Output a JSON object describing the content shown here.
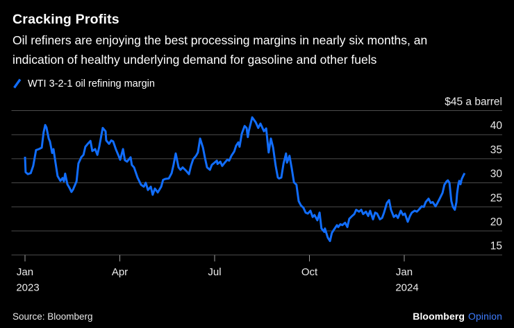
{
  "header": {
    "title": "Cracking Profits",
    "subtitle_lines": [
      "Oil refiners are enjoying the best processing margins in nearly six months, an",
      "indication of healthy underlying demand for gasoline and other fuels"
    ],
    "legend": {
      "label": "WTI 3-2-1 oil refining margin",
      "swatch_icon": "slash-icon",
      "color": "#116DFB"
    }
  },
  "chart_data": {
    "type": "line",
    "title": "Cracking Profits",
    "series_name": "WTI 3-2-1 oil refining margin",
    "y_top_label": "$45 a barrel",
    "ylabel": "$ a barrel",
    "ylim": [
      15,
      45
    ],
    "y_gridlines": [
      45,
      40,
      35,
      30,
      25,
      20,
      15
    ],
    "grid_color": "#4d4d4d",
    "tick_color": "#9e9e9e",
    "axis_text_color": "#ececec",
    "line_color": "#116DFB",
    "x_unit": "months since Jan 2023",
    "x_ticks": [
      {
        "t": 0,
        "label": "Jan",
        "sublabel": "2023"
      },
      {
        "t": 3,
        "label": "Apr",
        "sublabel": ""
      },
      {
        "t": 6,
        "label": "Jul",
        "sublabel": ""
      },
      {
        "t": 9,
        "label": "Oct",
        "sublabel": ""
      },
      {
        "t": 12,
        "label": "Jan",
        "sublabel": "2024"
      }
    ],
    "points": [
      [
        0,
        35.4
      ],
      [
        0.02,
        32.2
      ],
      [
        0.09,
        31.8
      ],
      [
        0.18,
        32
      ],
      [
        0.26,
        33.5
      ],
      [
        0.35,
        36.8
      ],
      [
        0.44,
        37
      ],
      [
        0.53,
        37.3
      ],
      [
        0.59,
        40.5
      ],
      [
        0.64,
        42
      ],
      [
        0.68,
        41.5
      ],
      [
        0.75,
        39.2
      ],
      [
        0.79,
        38.6
      ],
      [
        0.86,
        36.2
      ],
      [
        0.9,
        37
      ],
      [
        0.97,
        34
      ],
      [
        1.03,
        31.4
      ],
      [
        1.12,
        30.4
      ],
      [
        1.19,
        31
      ],
      [
        1.23,
        30.3
      ],
      [
        1.27,
        31.9
      ],
      [
        1.34,
        29.7
      ],
      [
        1.41,
        28.9
      ],
      [
        1.47,
        28.1
      ],
      [
        1.52,
        28.6
      ],
      [
        1.63,
        30.3
      ],
      [
        1.69,
        34
      ],
      [
        1.78,
        35.3
      ],
      [
        1.85,
        35.8
      ],
      [
        1.91,
        37.5
      ],
      [
        2,
        38.2
      ],
      [
        2.07,
        38.7
      ],
      [
        2.13,
        36.6
      ],
      [
        2.22,
        37
      ],
      [
        2.29,
        35.8
      ],
      [
        2.35,
        37.5
      ],
      [
        2.42,
        40
      ],
      [
        2.46,
        41.4
      ],
      [
        2.55,
        40.7
      ],
      [
        2.57,
        38.8
      ],
      [
        2.66,
        38.1
      ],
      [
        2.73,
        38.8
      ],
      [
        2.79,
        38.6
      ],
      [
        2.88,
        36.9
      ],
      [
        2.95,
        35.8
      ],
      [
        3.01,
        34.8
      ],
      [
        3.1,
        37
      ],
      [
        3.16,
        34.7
      ],
      [
        3.23,
        34.4
      ],
      [
        3.34,
        35.3
      ],
      [
        3.38,
        33.7
      ],
      [
        3.45,
        33.2
      ],
      [
        3.56,
        31.1
      ],
      [
        3.67,
        29.6
      ],
      [
        3.76,
        29.2
      ],
      [
        3.82,
        30
      ],
      [
        3.89,
        28.5
      ],
      [
        3.98,
        29.2
      ],
      [
        4.04,
        27.5
      ],
      [
        4.11,
        28.8
      ],
      [
        4.2,
        28
      ],
      [
        4.31,
        29.2
      ],
      [
        4.37,
        30.6
      ],
      [
        4.44,
        30.8
      ],
      [
        4.55,
        30.9
      ],
      [
        4.64,
        32
      ],
      [
        4.7,
        33.7
      ],
      [
        4.77,
        36.1
      ],
      [
        4.86,
        33.2
      ],
      [
        4.92,
        32.7
      ],
      [
        4.99,
        33.2
      ],
      [
        5.1,
        32.5
      ],
      [
        5.19,
        31.8
      ],
      [
        5.25,
        33.5
      ],
      [
        5.32,
        34.9
      ],
      [
        5.41,
        35.6
      ],
      [
        5.47,
        36.3
      ],
      [
        5.54,
        39.2
      ],
      [
        5.63,
        37.3
      ],
      [
        5.69,
        35.3
      ],
      [
        5.76,
        33.2
      ],
      [
        5.85,
        32.7
      ],
      [
        5.91,
        33.7
      ],
      [
        5.98,
        34.1
      ],
      [
        6.07,
        34.6
      ],
      [
        6.09,
        33.9
      ],
      [
        6.18,
        34.4
      ],
      [
        6.24,
        33.5
      ],
      [
        6.31,
        34.1
      ],
      [
        6.4,
        34.8
      ],
      [
        6.46,
        34.6
      ],
      [
        6.53,
        35.6
      ],
      [
        6.62,
        36.5
      ],
      [
        6.68,
        37.7
      ],
      [
        6.75,
        38.4
      ],
      [
        6.79,
        37.5
      ],
      [
        6.86,
        40.2
      ],
      [
        6.95,
        41.8
      ],
      [
        7.01,
        41.4
      ],
      [
        7.05,
        39.5
      ],
      [
        7.08,
        40.7
      ],
      [
        7.19,
        43.6
      ],
      [
        7.3,
        42.6
      ],
      [
        7.38,
        41.4
      ],
      [
        7.45,
        42.3
      ],
      [
        7.56,
        40.7
      ],
      [
        7.63,
        41.3
      ],
      [
        7.71,
        36.3
      ],
      [
        7.78,
        39.2
      ],
      [
        7.85,
        37.3
      ],
      [
        7.93,
        33.6
      ],
      [
        8,
        31.1
      ],
      [
        8.04,
        30.9
      ],
      [
        8.11,
        31.1
      ],
      [
        8.18,
        34
      ],
      [
        8.26,
        36.1
      ],
      [
        8.29,
        34.2
      ],
      [
        8.37,
        35.6
      ],
      [
        8.44,
        33
      ],
      [
        8.51,
        30.1
      ],
      [
        8.59,
        29.6
      ],
      [
        8.66,
        26.2
      ],
      [
        8.73,
        25.3
      ],
      [
        8.81,
        24.8
      ],
      [
        8.88,
        23.8
      ],
      [
        8.95,
        23.6
      ],
      [
        9.03,
        24.2
      ],
      [
        9.1,
        22.9
      ],
      [
        9.16,
        23.3
      ],
      [
        9.25,
        22.2
      ],
      [
        9.32,
        23.8
      ],
      [
        9.38,
        20.5
      ],
      [
        9.47,
        19.8
      ],
      [
        9.49,
        20.5
      ],
      [
        9.58,
        18.6
      ],
      [
        9.65,
        17.9
      ],
      [
        9.71,
        19.6
      ],
      [
        9.8,
        20.5
      ],
      [
        9.87,
        21.2
      ],
      [
        9.91,
        20.8
      ],
      [
        9.98,
        21.4
      ],
      [
        10.04,
        21.2
      ],
      [
        10.13,
        21.7
      ],
      [
        10.2,
        20.8
      ],
      [
        10.26,
        22.5
      ],
      [
        10.35,
        23.1
      ],
      [
        10.42,
        23.5
      ],
      [
        10.48,
        24.4
      ],
      [
        10.57,
        24
      ],
      [
        10.64,
        24.4
      ],
      [
        10.7,
        23.5
      ],
      [
        10.79,
        24
      ],
      [
        10.86,
        23.1
      ],
      [
        10.92,
        24.2
      ],
      [
        11.01,
        22.4
      ],
      [
        11.08,
        23.8
      ],
      [
        11.14,
        23.6
      ],
      [
        11.23,
        22.4
      ],
      [
        11.3,
        22.7
      ],
      [
        11.36,
        23.8
      ],
      [
        11.45,
        25.8
      ],
      [
        11.52,
        26.4
      ],
      [
        11.58,
        24.4
      ],
      [
        11.67,
        22.9
      ],
      [
        11.74,
        23.3
      ],
      [
        11.8,
        22.7
      ],
      [
        11.89,
        24.2
      ],
      [
        11.96,
        23.3
      ],
      [
        12.02,
        23.6
      ],
      [
        12.11,
        21.9
      ],
      [
        12.18,
        23.1
      ],
      [
        12.24,
        23.8
      ],
      [
        12.33,
        24.2
      ],
      [
        12.4,
        24
      ],
      [
        12.46,
        24.4
      ],
      [
        12.55,
        25.1
      ],
      [
        12.62,
        25
      ],
      [
        12.68,
        26
      ],
      [
        12.77,
        26.7
      ],
      [
        12.84,
        25.8
      ],
      [
        12.9,
        26
      ],
      [
        12.99,
        25.1
      ],
      [
        13.05,
        25.8
      ],
      [
        13.12,
        26.7
      ],
      [
        13.21,
        27.9
      ],
      [
        13.27,
        29.6
      ],
      [
        13.34,
        30.3
      ],
      [
        13.38,
        30.5
      ],
      [
        13.43,
        30
      ],
      [
        13.45,
        28.7
      ],
      [
        13.49,
        26.2
      ],
      [
        13.54,
        25
      ],
      [
        13.6,
        24.4
      ],
      [
        13.65,
        26
      ],
      [
        13.67,
        27.7
      ],
      [
        13.71,
        29.6
      ],
      [
        13.74,
        30.4
      ],
      [
        13.78,
        29.7
      ],
      [
        13.82,
        30.8
      ],
      [
        13.87,
        31.5
      ],
      [
        13.91,
        32
      ]
    ]
  },
  "footer": {
    "source": "Source: Bloomberg",
    "brand": "Bloomberg",
    "brand_suffix": "Opinion",
    "brand_suffix_color": "#3E7CFF"
  }
}
